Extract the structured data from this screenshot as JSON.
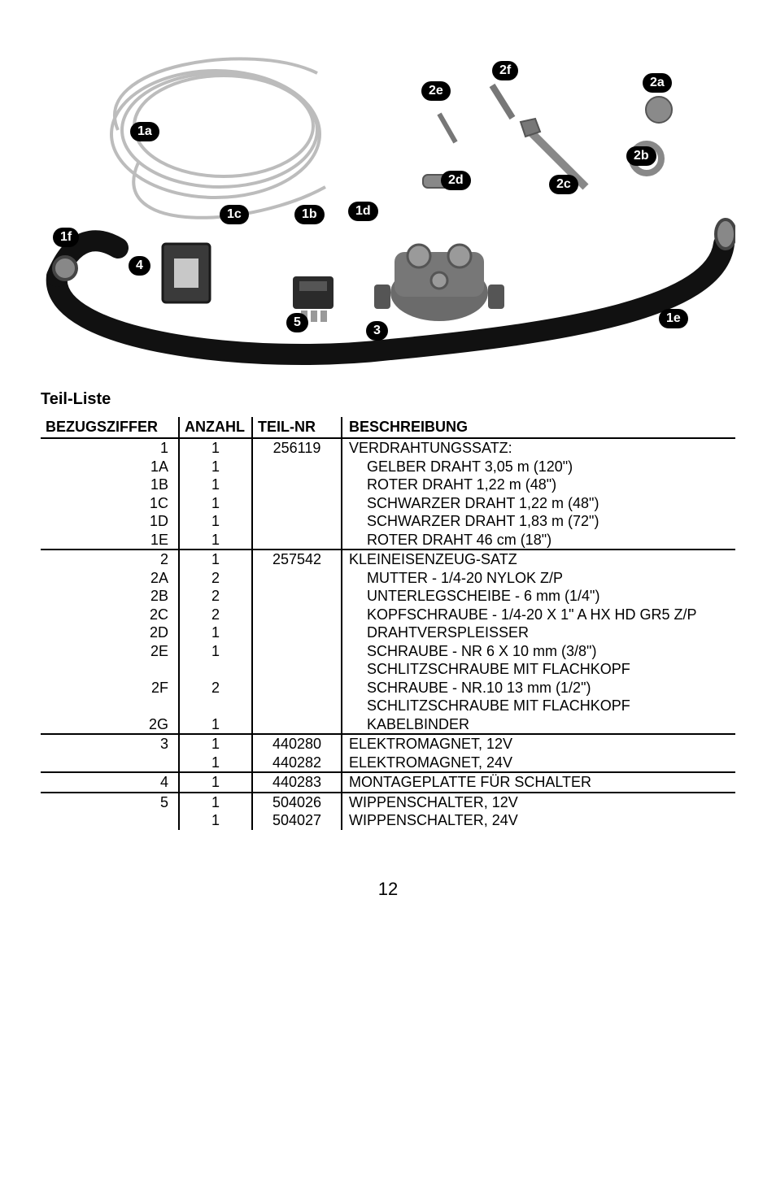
{
  "section_title": "Teil-Liste",
  "headers": {
    "bz": "BEZUGSZIFFER",
    "az": "ANZAHL",
    "tn": "TEIL-NR",
    "be": "BESCHREIBUNG"
  },
  "callouts": {
    "c1a": "1a",
    "c1b": "1b",
    "c1c": "1c",
    "c1d": "1d",
    "c1e": "1e",
    "c1f": "1f",
    "c2a": "2a",
    "c2b": "2b",
    "c2c": "2c",
    "c2d": "2d",
    "c2e": "2e",
    "c2f": "2f",
    "c3": "3",
    "c4": "4",
    "c5": "5"
  },
  "rows": [
    {
      "bz": "1",
      "az": "1",
      "tn": "256119",
      "be": "VERDRAHTUNGSSATZ:",
      "group_top": true
    },
    {
      "bz": "1A",
      "az": "1",
      "tn": "",
      "be": "GELBER DRAHT 3,05 m (120\")",
      "sub": true
    },
    {
      "bz": "1B",
      "az": "1",
      "tn": "",
      "be": "ROTER DRAHT 1,22 m (48\")",
      "sub": true
    },
    {
      "bz": "1C",
      "az": "1",
      "tn": "",
      "be": "SCHWARZER DRAHT 1,22 m (48\")",
      "sub": true
    },
    {
      "bz": "1D",
      "az": "1",
      "tn": "",
      "be": "SCHWARZER DRAHT 1,83 m (72\")",
      "sub": true
    },
    {
      "bz": "1E",
      "az": "1",
      "tn": "",
      "be": "ROTER DRAHT 46 cm (18\")",
      "sub": true
    },
    {
      "bz": "2",
      "az": "1",
      "tn": "257542",
      "be": "KLEINEISENZEUG-SATZ",
      "group_top": true
    },
    {
      "bz": "2A",
      "az": "2",
      "tn": "",
      "be": "MUTTER - 1/4-20 NYLOK Z/P",
      "sub": true
    },
    {
      "bz": "2B",
      "az": "2",
      "tn": "",
      "be": "UNTERLEGSCHEIBE - 6 mm (1/4\")",
      "sub": true
    },
    {
      "bz": "2C",
      "az": "2",
      "tn": "",
      "be": "KOPFSCHRAUBE - 1/4-20 X 1\" A HX HD GR5 Z/P",
      "sub": true
    },
    {
      "bz": "2D",
      "az": "1",
      "tn": "",
      "be": "DRAHTVERSPLEISSER",
      "sub": true
    },
    {
      "bz": "2E",
      "az": "1",
      "tn": "",
      "be": "SCHRAUBE - NR 6 X 10 mm (3/8\")",
      "sub": true
    },
    {
      "bz": "",
      "az": "",
      "tn": "",
      "be": "SCHLITZSCHRAUBE MIT FLACHKOPF",
      "sub": true
    },
    {
      "bz": "2F",
      "az": "2",
      "tn": "",
      "be": "SCHRAUBE - NR.10 13 mm (1/2\")",
      "sub": true
    },
    {
      "bz": "",
      "az": "",
      "tn": "",
      "be": "SCHLITZSCHRAUBE MIT FLACHKOPF",
      "sub": true
    },
    {
      "bz": "2G",
      "az": "1",
      "tn": "",
      "be": "KABELBINDER",
      "sub": true
    },
    {
      "bz": "3",
      "az": "1",
      "tn": "440280",
      "be": "ELEKTROMAGNET, 12V",
      "group_top": true
    },
    {
      "bz": "",
      "az": "1",
      "tn": "440282",
      "be": "ELEKTROMAGNET, 24V"
    },
    {
      "bz": "4",
      "az": "1",
      "tn": "440283",
      "be": "MONTAGEPLATTE FÜR SCHALTER",
      "group_top": true
    },
    {
      "bz": "5",
      "az": "1",
      "tn": "504026",
      "be": "WIPPENSCHALTER, 12V",
      "group_top": true
    },
    {
      "bz": "",
      "az": "1",
      "tn": "504027",
      "be": "WIPPENSCHALTER, 24V"
    }
  ],
  "page_number": "12"
}
